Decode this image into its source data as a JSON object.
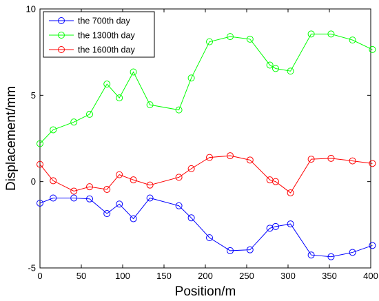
{
  "chart_data": {
    "type": "line",
    "xlabel": "Position/m",
    "ylabel": "Displacement/mm",
    "xlim": [
      0,
      400
    ],
    "ylim": [
      -5,
      10
    ],
    "xticks": [
      0,
      50,
      100,
      150,
      200,
      250,
      300,
      350,
      400
    ],
    "yticks": [
      -5,
      0,
      5,
      10
    ],
    "grid": false,
    "legend_position": "top-left",
    "series": [
      {
        "name": "the 700th day",
        "color": "#0000ff",
        "marker": "circle",
        "x": [
          0,
          16,
          41,
          60,
          81,
          96,
          113,
          133,
          168,
          183,
          205,
          230,
          254,
          278,
          285,
          303,
          328,
          352,
          378,
          402
        ],
        "y": [
          -1.25,
          -0.95,
          -0.95,
          -1.0,
          -1.85,
          -1.3,
          -2.15,
          -0.95,
          -1.4,
          -2.1,
          -3.25,
          -4.0,
          -3.95,
          -2.7,
          -2.6,
          -2.45,
          -4.25,
          -4.35,
          -4.1,
          -3.7
        ]
      },
      {
        "name": "the 1300th day",
        "color": "#00ff00",
        "marker": "circle",
        "x": [
          0,
          16,
          41,
          60,
          81,
          96,
          113,
          133,
          168,
          183,
          205,
          230,
          254,
          278,
          285,
          303,
          328,
          352,
          378,
          402
        ],
        "y": [
          2.2,
          3.0,
          3.45,
          3.9,
          5.65,
          4.85,
          6.35,
          4.45,
          4.15,
          6.0,
          8.1,
          8.4,
          8.25,
          6.75,
          6.55,
          6.4,
          8.55,
          8.55,
          8.2,
          7.65
        ]
      },
      {
        "name": "the 1600th day",
        "color": "#ff0000",
        "marker": "circle",
        "x": [
          0,
          16,
          41,
          60,
          81,
          96,
          113,
          133,
          168,
          183,
          205,
          230,
          254,
          278,
          285,
          303,
          328,
          352,
          378,
          402
        ],
        "y": [
          1.0,
          0.05,
          -0.55,
          -0.3,
          -0.45,
          0.4,
          0.1,
          -0.2,
          0.25,
          0.75,
          1.4,
          1.5,
          1.25,
          0.1,
          0.0,
          -0.65,
          1.3,
          1.35,
          1.2,
          1.05
        ]
      }
    ]
  }
}
